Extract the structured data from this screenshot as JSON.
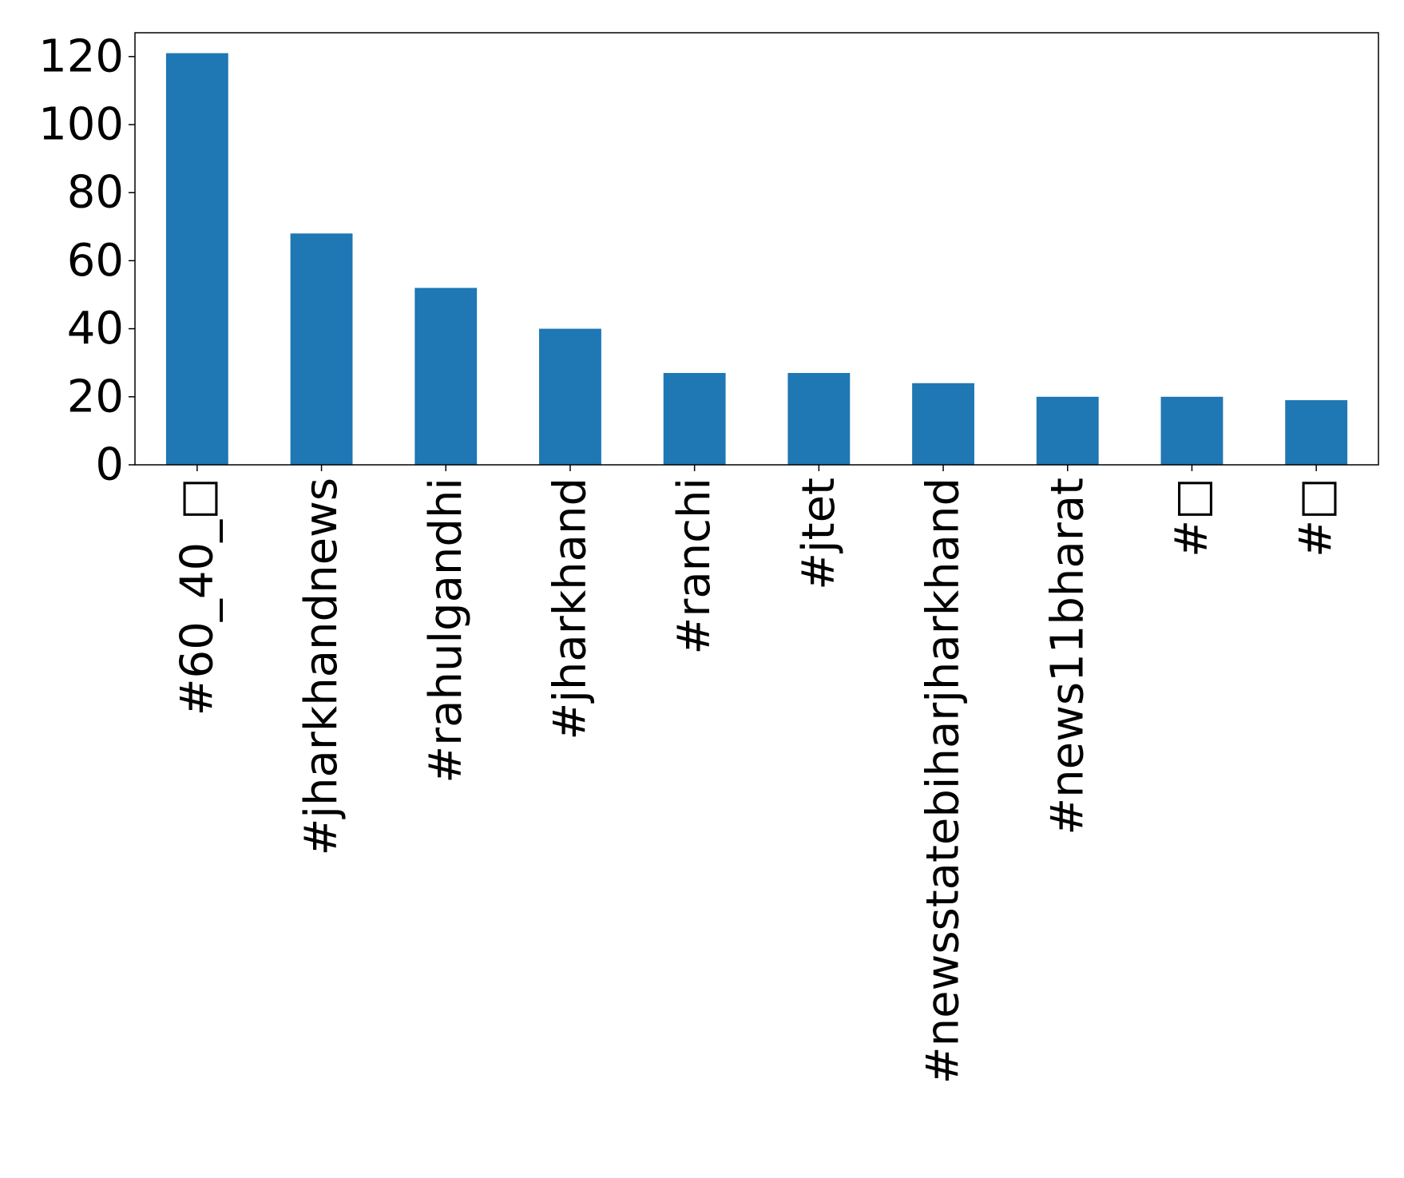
{
  "chart_data": {
    "type": "bar",
    "title": "",
    "xlabel": "",
    "ylabel": "",
    "categories": [
      "#60_40_□",
      "#jharkhandnews",
      "#rahulgandhi",
      "#jharkhand",
      "#ranchi",
      "#jtet",
      "#newsstatebiharjharkhand",
      "#news11bharat",
      "#□",
      "#□"
    ],
    "values": [
      121,
      68,
      52,
      40,
      27,
      27,
      24,
      20,
      20,
      19
    ],
    "ylim": [
      0,
      127
    ],
    "yticks": [
      0,
      20,
      40,
      60,
      80,
      100,
      120
    ],
    "bar_color": "#1f77b4",
    "grid": false,
    "legend": "none"
  }
}
